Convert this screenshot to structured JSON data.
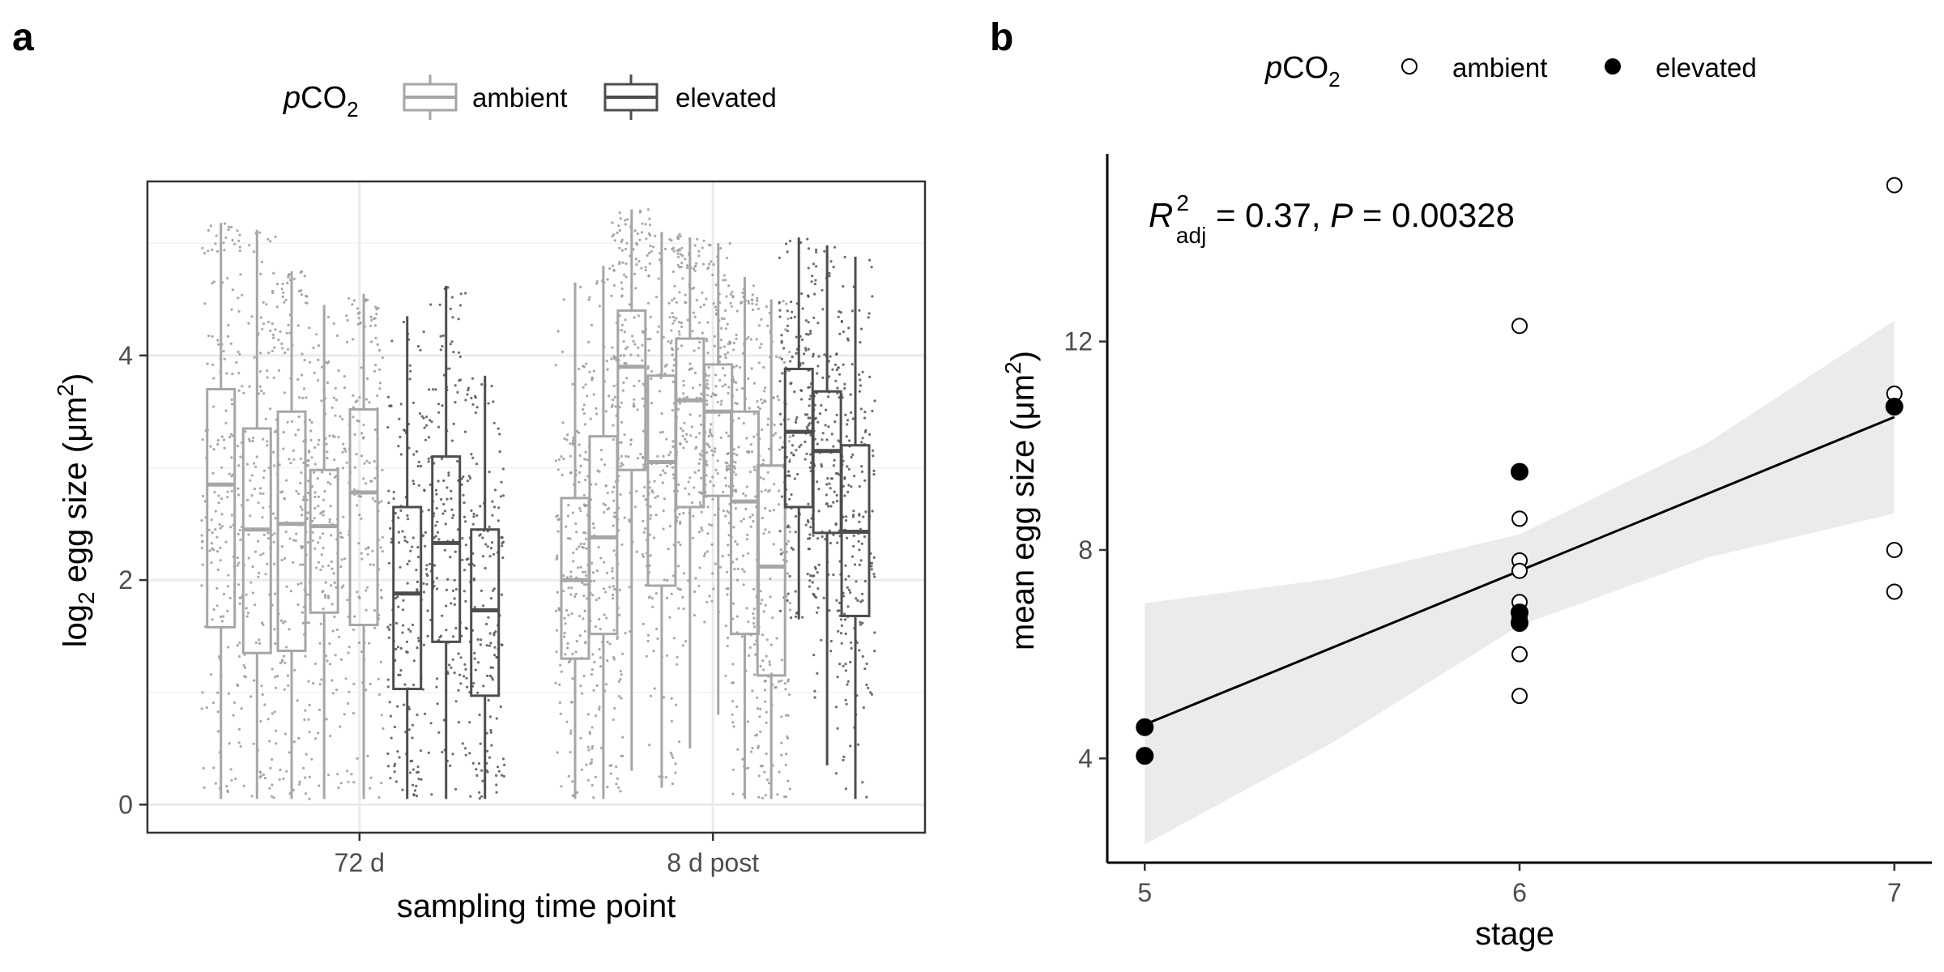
{
  "chart_data": [
    {
      "panel": "a",
      "type": "box",
      "legend": {
        "title_italic": "p",
        "title_main": "CO",
        "title_sub": "2",
        "placement": "top",
        "entries": [
          {
            "label": "ambient",
            "color": "#a6a6a6"
          },
          {
            "label": "elevated",
            "color": "#4d4d4d"
          }
        ]
      },
      "xlabel": "sampling time point",
      "ylabel": {
        "pre": "log",
        "sub": "2",
        "mid": " egg size (μm",
        "sup": "2",
        "post": ")"
      },
      "ylim": [
        -0.25,
        5.55
      ],
      "yticks": [
        0,
        2,
        4
      ],
      "grid": true,
      "groups": [
        {
          "label": "72 d",
          "x": 1,
          "boxes": [
            {
              "group": "ambient",
              "offset": -0.392,
              "q1": 1.58,
              "median": 2.85,
              "q3": 3.7,
              "lo": 0.05,
              "hi": 5.18
            },
            {
              "group": "ambient",
              "offset": -0.29,
              "q1": 1.35,
              "median": 2.45,
              "q3": 3.35,
              "lo": 0.05,
              "hi": 5.12
            },
            {
              "group": "ambient",
              "offset": -0.192,
              "q1": 1.37,
              "median": 2.5,
              "q3": 3.5,
              "lo": 0.05,
              "hi": 4.75
            },
            {
              "group": "ambient",
              "offset": -0.1,
              "q1": 1.71,
              "median": 2.48,
              "q3": 2.98,
              "lo": 0.05,
              "hi": 4.45
            },
            {
              "group": "ambient",
              "offset": 0.012,
              "q1": 1.6,
              "median": 2.78,
              "q3": 3.52,
              "lo": 0.05,
              "hi": 4.55
            },
            {
              "group": "elevated",
              "offset": 0.135,
              "q1": 1.03,
              "median": 1.88,
              "q3": 2.65,
              "lo": 0.05,
              "hi": 4.35
            },
            {
              "group": "elevated",
              "offset": 0.245,
              "q1": 1.45,
              "median": 2.33,
              "q3": 3.1,
              "lo": 0.05,
              "hi": 4.62
            },
            {
              "group": "elevated",
              "offset": 0.355,
              "q1": 0.97,
              "median": 1.73,
              "q3": 2.45,
              "lo": 0.05,
              "hi": 3.82
            }
          ]
        },
        {
          "label": "8 d post",
          "x": 2,
          "boxes": [
            {
              "group": "ambient",
              "offset": -0.39,
              "q1": 1.3,
              "median": 2.0,
              "q3": 2.73,
              "lo": 0.05,
              "hi": 4.65
            },
            {
              "group": "ambient",
              "offset": -0.31,
              "q1": 1.52,
              "median": 2.38,
              "q3": 3.28,
              "lo": 0.05,
              "hi": 4.8
            },
            {
              "group": "ambient",
              "offset": -0.23,
              "q1": 2.98,
              "median": 3.9,
              "q3": 4.4,
              "lo": 0.3,
              "hi": 5.3
            },
            {
              "group": "ambient",
              "offset": -0.145,
              "q1": 1.95,
              "median": 3.05,
              "q3": 3.82,
              "lo": 0.15,
              "hi": 5.1
            },
            {
              "group": "ambient",
              "offset": -0.065,
              "q1": 2.65,
              "median": 3.6,
              "q3": 4.15,
              "lo": 0.5,
              "hi": 5.05
            },
            {
              "group": "ambient",
              "offset": 0.015,
              "q1": 2.75,
              "median": 3.5,
              "q3": 3.92,
              "lo": 0.8,
              "hi": 5.0
            },
            {
              "group": "ambient",
              "offset": 0.09,
              "q1": 1.52,
              "median": 2.7,
              "q3": 3.5,
              "lo": 0.05,
              "hi": 4.7
            },
            {
              "group": "ambient",
              "offset": 0.165,
              "q1": 1.15,
              "median": 2.12,
              "q3": 3.02,
              "lo": 0.05,
              "hi": 4.5
            },
            {
              "group": "elevated",
              "offset": 0.243,
              "q1": 2.65,
              "median": 3.32,
              "q3": 3.88,
              "lo": 1.65,
              "hi": 5.05
            },
            {
              "group": "elevated",
              "offset": 0.323,
              "q1": 2.42,
              "median": 3.15,
              "q3": 3.68,
              "lo": 0.35,
              "hi": 4.98
            },
            {
              "group": "elevated",
              "offset": 0.403,
              "q1": 1.68,
              "median": 2.43,
              "q3": 3.2,
              "lo": 0.05,
              "hi": 4.88
            }
          ]
        }
      ]
    },
    {
      "panel": "b",
      "type": "scatter",
      "legend": {
        "title_italic": "p",
        "title_main": "CO",
        "title_sub": "2",
        "placement": "top",
        "entries": [
          {
            "label": "ambient",
            "marker": "open-circle"
          },
          {
            "label": "elevated",
            "marker": "filled-circle"
          }
        ]
      },
      "xlabel": "stage",
      "ylabel": {
        "pre": "mean egg size (μm",
        "sup": "2",
        "post": ")"
      },
      "xlim": [
        4.9,
        7.1
      ],
      "ylim": [
        2.0,
        15.6
      ],
      "xticks": [
        5,
        6,
        7
      ],
      "yticks": [
        4,
        8,
        12
      ],
      "grid": false,
      "annotation": {
        "r_sym": "R",
        "r_sup": "2",
        "r_sub": "adj",
        "rest1": " = 0.37, ",
        "p_sym": "P",
        "rest2": " = 0.00328"
      },
      "regression": {
        "start": [
          5,
          4.65
        ],
        "end": [
          7,
          10.55
        ]
      },
      "confidence_band": [
        {
          "x": 5.0,
          "lo": 2.35,
          "hi": 6.98
        },
        {
          "x": 5.5,
          "lo": 4.3,
          "hi": 7.45
        },
        {
          "x": 6.0,
          "lo": 6.55,
          "hi": 8.3
        },
        {
          "x": 6.5,
          "lo": 7.85,
          "hi": 10.05
        },
        {
          "x": 7.0,
          "lo": 8.7,
          "hi": 12.4
        }
      ],
      "series": [
        {
          "name": "ambient",
          "points": [
            {
              "x": 6,
              "y": 12.3
            },
            {
              "x": 6,
              "y": 8.6
            },
            {
              "x": 6,
              "y": 7.8
            },
            {
              "x": 6,
              "y": 7.6
            },
            {
              "x": 6,
              "y": 7.0
            },
            {
              "x": 6,
              "y": 6.7
            },
            {
              "x": 6,
              "y": 6.0
            },
            {
              "x": 6,
              "y": 5.2
            },
            {
              "x": 7,
              "y": 15.0
            },
            {
              "x": 7,
              "y": 11.0
            },
            {
              "x": 7,
              "y": 8.0
            },
            {
              "x": 7,
              "y": 7.2
            }
          ]
        },
        {
          "name": "elevated",
          "points": [
            {
              "x": 5,
              "y": 4.6
            },
            {
              "x": 5,
              "y": 4.05
            },
            {
              "x": 6,
              "y": 9.5
            },
            {
              "x": 6,
              "y": 6.8
            },
            {
              "x": 6,
              "y": 6.6
            },
            {
              "x": 7,
              "y": 10.75
            }
          ]
        }
      ]
    }
  ]
}
